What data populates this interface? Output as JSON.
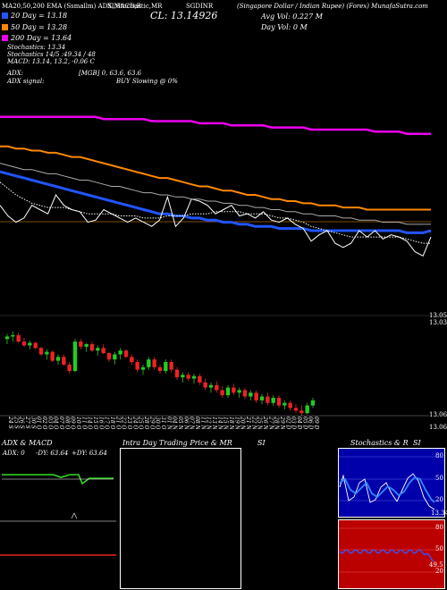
{
  "header": {
    "top_line": "MA20,50,200 EMA (Ssmallm) ADX,MACD,R",
    "top_line_2": "SI,Stochastic,MR",
    "top_line_3": "(Singapore Dollar / Indian Rupee) (Forex) MunafaSutra.com",
    "symbol": "SGDINR",
    "cl_label": "CL: 13.14926",
    "avg_vol": "Avg Vol: 0.227 M",
    "day_vol": "Day Vol: 0 M"
  },
  "legend": [
    {
      "label": "20 Day = 13.18",
      "color": "#2255ff"
    },
    {
      "label": "50 Day = 13.28",
      "color": "#ff8800"
    },
    {
      "label": "200 Day = 13.64",
      "color": "#ee00ee"
    }
  ],
  "stats": {
    "stochastics": "Stochastics: 13.34",
    "stochastics_val": "Stochastics 14/5 :49.34 / 48",
    "macd": "MACD: 13.14,  13.2,  -0.06  C",
    "adx": "ADX:",
    "adx_val": "[MGB] 0, 63.6,  63.6",
    "adx_signal": "ADX  signal:",
    "buy_signal": "BUY Slowing @ 0%"
  },
  "price_labels": {
    "right_top": "13.05",
    "right_mid": "13.03 14.0",
    "right_candle_low": "13.06",
    "right_candle_low2": "13.06,13.05"
  },
  "dates": [
    "24 Sep",
    "25 Sep",
    "26 Sep",
    "27 Sep",
    "30 Sep",
    "01 Oct",
    "02 Oct",
    "03 Oct",
    "04 Oct",
    "07 Oct",
    "08 Oct",
    "09 Oct",
    "10 Oct",
    "11 Oct",
    "14 Oct",
    "15 Oct",
    "16 Oct",
    "17 Oct",
    "18 Oct",
    "21 Oct",
    "22 Oct",
    "23 Oct",
    "24 Oct",
    "25 Oct",
    "28 Oct",
    "29 Oct",
    "30 Oct",
    "31 Oct",
    "01 Nov",
    "04 Nov",
    "05 Nov",
    "06 Nov",
    "07 Nov",
    "08 Nov",
    "11 Nov",
    "12 Nov",
    "13 Nov",
    "14 Nov",
    "15 Nov",
    "18 Nov",
    "19 Nov",
    "20 Nov",
    "21 Nov",
    "22 Nov",
    "25 Nov",
    "26 Nov",
    "27 Nov",
    "28 Nov",
    "29 Nov",
    "02 Dec",
    "03 Dec",
    "04 Dec",
    "05 Dec",
    "06 Dec",
    "09 Dec"
  ],
  "panels": {
    "adx_title": "ADX  & MACD",
    "adx_readout_label": "ADX: 0",
    "adx_readout_neg": "-DY: 63.64",
    "adx_readout_pos": "+DY: 63.64",
    "mr_title": "Intra  Day Trading Price  & MR",
    "mr_si": "SI",
    "stoch_title": "Stochastics & R",
    "stoch_si": "SI",
    "stoch_ticks": [
      "80",
      "50",
      "20"
    ],
    "stoch_last": "13.34",
    "rsi_ticks": [
      "80",
      "50",
      "20"
    ],
    "rsi_last": "49.5"
  },
  "chart_data": {
    "type": "line",
    "title": "SGDINR",
    "series": [
      {
        "name": "20 Day",
        "color": "#2255ff",
        "values": [
          13.46,
          13.45,
          13.44,
          13.43,
          13.42,
          13.41,
          13.4,
          13.39,
          13.38,
          13.37,
          13.36,
          13.35,
          13.34,
          13.33,
          13.32,
          13.31,
          13.3,
          13.29,
          13.28,
          13.27,
          13.26,
          13.26,
          13.25,
          13.25,
          13.24,
          13.24,
          13.23,
          13.23,
          13.22,
          13.22,
          13.21,
          13.21,
          13.2,
          13.2,
          13.2,
          13.19,
          13.19,
          13.19,
          13.19,
          13.18,
          13.18,
          13.18,
          13.18,
          13.18,
          13.18,
          13.18,
          13.18,
          13.18,
          13.18,
          13.18,
          13.18,
          13.17,
          13.17,
          13.17,
          13.18
        ]
      },
      {
        "name": "50 Day",
        "color": "#ff8800",
        "values": [
          13.58,
          13.58,
          13.57,
          13.57,
          13.56,
          13.56,
          13.55,
          13.55,
          13.54,
          13.53,
          13.53,
          13.52,
          13.51,
          13.5,
          13.49,
          13.48,
          13.47,
          13.46,
          13.45,
          13.44,
          13.43,
          13.43,
          13.42,
          13.41,
          13.4,
          13.39,
          13.39,
          13.38,
          13.37,
          13.37,
          13.36,
          13.35,
          13.35,
          13.34,
          13.33,
          13.33,
          13.32,
          13.32,
          13.31,
          13.31,
          13.3,
          13.3,
          13.3,
          13.29,
          13.29,
          13.29,
          13.28,
          13.28,
          13.28,
          13.28,
          13.28,
          13.28,
          13.28,
          13.28,
          13.28
        ]
      },
      {
        "name": "200 Day",
        "color": "#ee00ee",
        "values": [
          13.72,
          13.72,
          13.72,
          13.72,
          13.72,
          13.72,
          13.72,
          13.72,
          13.72,
          13.72,
          13.72,
          13.72,
          13.72,
          13.71,
          13.71,
          13.71,
          13.71,
          13.71,
          13.71,
          13.7,
          13.7,
          13.7,
          13.7,
          13.7,
          13.7,
          13.69,
          13.69,
          13.69,
          13.69,
          13.68,
          13.68,
          13.68,
          13.68,
          13.68,
          13.67,
          13.67,
          13.67,
          13.67,
          13.67,
          13.66,
          13.66,
          13.66,
          13.66,
          13.66,
          13.66,
          13.66,
          13.66,
          13.65,
          13.65,
          13.65,
          13.65,
          13.64,
          13.64,
          13.64,
          13.64
        ]
      },
      {
        "name": "Close",
        "color": "#ffffff",
        "values": [
          13.3,
          13.25,
          13.22,
          13.24,
          13.3,
          13.28,
          13.26,
          13.35,
          13.3,
          13.28,
          13.27,
          13.22,
          13.23,
          13.28,
          13.26,
          13.24,
          13.22,
          13.24,
          13.22,
          13.2,
          13.23,
          13.34,
          13.2,
          13.24,
          13.33,
          13.32,
          13.3,
          13.26,
          13.28,
          13.3,
          13.25,
          13.26,
          13.24,
          13.27,
          13.23,
          13.22,
          13.24,
          13.21,
          13.19,
          13.13,
          13.16,
          13.18,
          13.12,
          13.1,
          13.12,
          13.18,
          13.15,
          13.18,
          13.14,
          13.16,
          13.15,
          13.13,
          13.08,
          13.06,
          13.15
        ]
      },
      {
        "name": "Dotted",
        "color": "#ffffff",
        "values": [
          13.41,
          13.38,
          13.35,
          13.33,
          13.31,
          13.3,
          13.29,
          13.29,
          13.29,
          13.28,
          13.27,
          13.26,
          13.26,
          13.26,
          13.26,
          13.25,
          13.25,
          13.25,
          13.24,
          13.24,
          13.24,
          13.25,
          13.25,
          13.25,
          13.26,
          13.26,
          13.26,
          13.27,
          13.27,
          13.27,
          13.27,
          13.26,
          13.26,
          13.26,
          13.25,
          13.24,
          13.24,
          13.23,
          13.22,
          13.2,
          13.19,
          13.18,
          13.17,
          13.16,
          13.15,
          13.15,
          13.15,
          13.15,
          13.15,
          13.15,
          13.15,
          13.14,
          13.13,
          13.12,
          13.12
        ]
      },
      {
        "name": "Grey",
        "color": "#aaaaaa",
        "values": [
          13.5,
          13.49,
          13.48,
          13.47,
          13.47,
          13.46,
          13.45,
          13.45,
          13.44,
          13.43,
          13.42,
          13.42,
          13.41,
          13.4,
          13.39,
          13.39,
          13.38,
          13.37,
          13.36,
          13.36,
          13.35,
          13.35,
          13.34,
          13.34,
          13.33,
          13.33,
          13.32,
          13.32,
          13.31,
          13.31,
          13.3,
          13.3,
          13.29,
          13.29,
          13.28,
          13.28,
          13.27,
          13.27,
          13.26,
          13.26,
          13.25,
          13.25,
          13.25,
          13.24,
          13.24,
          13.23,
          13.23,
          13.23,
          13.22,
          13.22,
          13.22,
          13.21,
          13.21,
          13.21,
          13.21
        ]
      }
    ],
    "candles_ohlc": [
      [
        13.3,
        13.34,
        13.26,
        13.32
      ],
      [
        13.32,
        13.36,
        13.28,
        13.33
      ],
      [
        13.33,
        13.35,
        13.27,
        13.28
      ],
      [
        13.28,
        13.31,
        13.24,
        13.25
      ],
      [
        13.25,
        13.29,
        13.22,
        13.27
      ],
      [
        13.27,
        13.28,
        13.22,
        13.23
      ],
      [
        13.23,
        13.24,
        13.17,
        13.18
      ],
      [
        13.18,
        13.22,
        13.14,
        13.2
      ],
      [
        13.2,
        13.21,
        13.12,
        13.13
      ],
      [
        13.13,
        13.18,
        13.1,
        13.16
      ],
      [
        13.16,
        13.18,
        13.09,
        13.1
      ],
      [
        13.1,
        13.12,
        13.03,
        13.05
      ],
      [
        13.05,
        13.3,
        13.04,
        13.28
      ],
      [
        13.28,
        13.3,
        13.22,
        13.24
      ],
      [
        13.24,
        13.27,
        13.2,
        13.26
      ],
      [
        13.26,
        13.28,
        13.2,
        13.21
      ],
      [
        13.21,
        13.25,
        13.17,
        13.23
      ],
      [
        13.23,
        13.26,
        13.18,
        13.19
      ],
      [
        13.19,
        13.2,
        13.12,
        13.14
      ],
      [
        13.14,
        13.2,
        13.1,
        13.18
      ],
      [
        13.18,
        13.23,
        13.14,
        13.21
      ],
      [
        13.21,
        13.22,
        13.15,
        13.16
      ],
      [
        13.16,
        13.18,
        13.1,
        13.12
      ],
      [
        13.12,
        13.14,
        13.04,
        13.06
      ],
      [
        13.06,
        13.1,
        13.02,
        13.08
      ],
      [
        13.08,
        13.16,
        13.06,
        13.14
      ],
      [
        13.14,
        13.16,
        13.06,
        13.08
      ],
      [
        13.08,
        13.1,
        13.03,
        13.05
      ],
      [
        13.05,
        13.14,
        13.03,
        13.12
      ],
      [
        13.12,
        13.14,
        13.04,
        13.06
      ],
      [
        13.06,
        13.08,
        12.98,
        13.0
      ],
      [
        13.0,
        13.04,
        12.96,
        13.02
      ],
      [
        13.02,
        13.04,
        12.97,
        12.99
      ],
      [
        12.99,
        13.03,
        12.95,
        13.01
      ],
      [
        13.01,
        13.03,
        12.94,
        12.96
      ],
      [
        12.96,
        12.99,
        12.9,
        12.92
      ],
      [
        12.92,
        12.96,
        12.88,
        12.94
      ],
      [
        12.94,
        12.97,
        12.88,
        12.9
      ],
      [
        12.9,
        12.93,
        12.84,
        12.86
      ],
      [
        12.86,
        12.94,
        12.84,
        12.92
      ],
      [
        12.92,
        12.95,
        12.86,
        12.88
      ],
      [
        12.88,
        12.92,
        12.84,
        12.9
      ],
      [
        12.9,
        12.92,
        12.83,
        12.85
      ],
      [
        12.85,
        12.9,
        12.82,
        12.88
      ],
      [
        12.88,
        12.9,
        12.8,
        12.82
      ],
      [
        12.82,
        12.87,
        12.79,
        12.85
      ],
      [
        12.85,
        12.88,
        12.78,
        12.8
      ],
      [
        12.8,
        12.86,
        12.78,
        12.84
      ],
      [
        12.84,
        12.86,
        12.76,
        12.78
      ],
      [
        12.78,
        12.82,
        12.75,
        12.8
      ],
      [
        12.8,
        12.82,
        12.74,
        12.76
      ],
      [
        12.76,
        12.79,
        12.72,
        12.74
      ],
      [
        12.74,
        12.78,
        12.7,
        12.72
      ],
      [
        12.72,
        12.8,
        12.71,
        12.78
      ],
      [
        12.78,
        12.84,
        12.76,
        12.82
      ]
    ],
    "ylim": [
      13.0,
      13.8
    ],
    "candle_ylim": [
      12.7,
      13.4
    ]
  }
}
